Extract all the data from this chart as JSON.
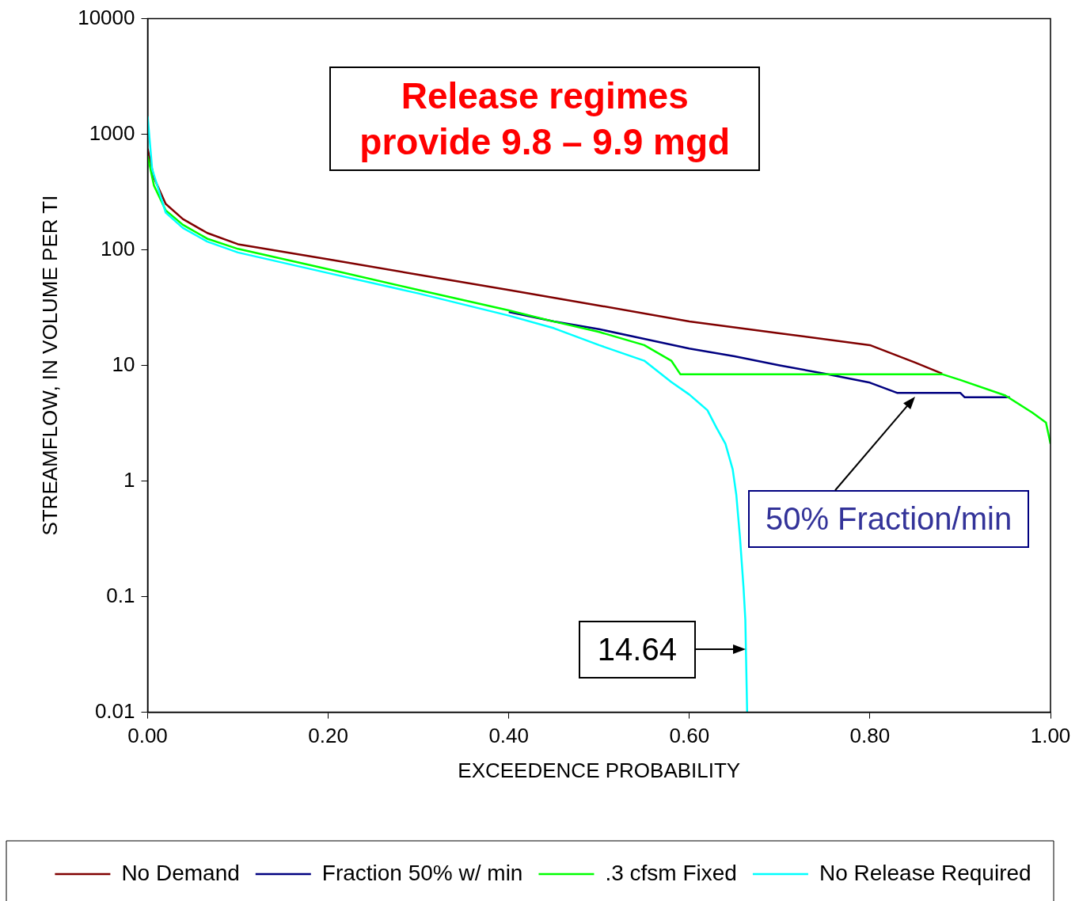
{
  "chart_data": {
    "type": "line",
    "xlabel": "EXCEEDENCE PROBABILITY",
    "ylabel": "STREAMFLOW, IN VOLUME PER TI",
    "log": "y",
    "grid": false,
    "legend": "bottom",
    "marker": "none",
    "line_style": "solid",
    "xlim": [
      0,
      1
    ],
    "xticks": [
      {
        "value": 0,
        "label": "0.00"
      },
      {
        "value": 0.2,
        "label": "0.20"
      },
      {
        "value": 0.4,
        "label": "0.40"
      },
      {
        "value": 0.6,
        "label": "0.60"
      },
      {
        "value": 0.8,
        "label": "0.80"
      },
      {
        "value": 1,
        "label": "1.00"
      }
    ],
    "ylim": [
      0.01,
      10000
    ],
    "yticks": [
      0.01,
      0.1,
      1,
      10,
      100,
      1000,
      10000
    ],
    "annotations": [
      "Release regimes\nprovide 9.8 – 9.9 mgd",
      "50% Fraction/min",
      {
        "text": "14.64",
        "x": 0.664,
        "y": 0.035
      }
    ],
    "series": [
      {
        "name": "No Demand",
        "color": "#800000",
        "x": [
          0,
          0.007,
          0.02,
          0.039,
          0.066,
          0.1,
          0.2,
          0.3,
          0.4,
          0.5,
          0.6,
          0.7,
          0.8,
          0.85,
          0.88
        ],
        "values": [
          750,
          420,
          250,
          185,
          140,
          112,
          83,
          61,
          45,
          33,
          24,
          19,
          15,
          10.6,
          8.5
        ]
      },
      {
        "name": "Fraction 50% w/ min",
        "color": "#000080",
        "x": [
          0.4,
          0.45,
          0.5,
          0.55,
          0.6,
          0.65,
          0.7,
          0.75,
          0.8,
          0.83,
          0.9,
          0.905,
          0.955
        ],
        "values": [
          29,
          24,
          20.6,
          17,
          14,
          12,
          10,
          8.5,
          7.1,
          5.8,
          5.8,
          5.3,
          5.3
        ]
      },
      {
        "name": ".3 cfsm Fixed",
        "color": "#00ff00",
        "x": [
          0,
          0.007,
          0.02,
          0.039,
          0.066,
          0.1,
          0.2,
          0.3,
          0.4,
          0.45,
          0.5,
          0.55,
          0.58,
          0.59,
          0.88,
          0.9,
          0.95,
          0.98,
          0.995,
          1
        ],
        "values": [
          650,
          360,
          220,
          165,
          125,
          102,
          68,
          45,
          30,
          24,
          19.5,
          15,
          11,
          8.4,
          8.4,
          7.5,
          5.5,
          3.9,
          3.2,
          2.1
        ]
      },
      {
        "name": "No Release Required",
        "color": "#00ffff",
        "x": [
          0,
          0.005,
          0.02,
          0.039,
          0.066,
          0.1,
          0.2,
          0.3,
          0.4,
          0.45,
          0.5,
          0.55,
          0.58,
          0.6,
          0.62,
          0.63,
          0.64,
          0.648,
          0.652,
          0.656,
          0.66,
          0.662,
          0.664
        ],
        "values": [
          1430,
          500,
          210,
          155,
          118,
          95,
          63,
          42,
          27,
          21,
          15,
          11,
          7.2,
          5.6,
          4.1,
          2.9,
          2.1,
          1.26,
          0.76,
          0.33,
          0.12,
          0.063,
          0.01
        ]
      }
    ]
  }
}
